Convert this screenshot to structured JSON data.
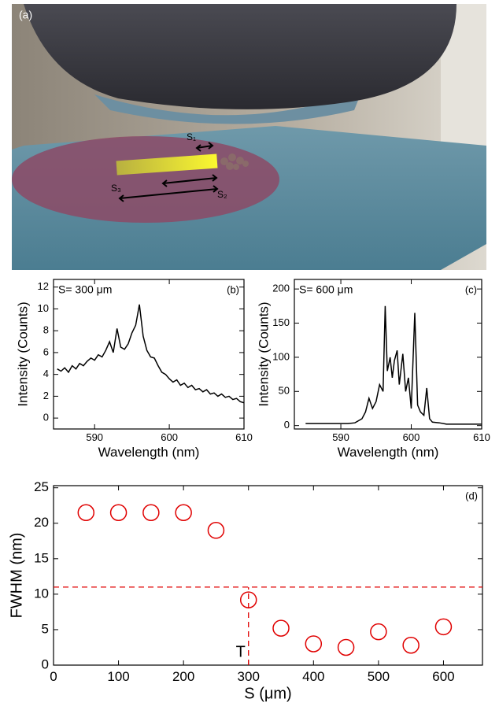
{
  "image_panel": {
    "label": "(a)",
    "marks": [
      "S₁",
      "S₂",
      "S₃"
    ]
  },
  "chart_data": [
    {
      "type": "line",
      "annotation": "S= 300 μm",
      "panel": "(b)",
      "xlabel": "Wavelength (nm)",
      "ylabel": "Intensity (Counts)",
      "color": "#000000",
      "x": [
        585,
        585.5,
        586,
        586.5,
        587,
        587.5,
        588,
        588.5,
        589,
        589.5,
        590,
        590.5,
        591,
        591.5,
        592,
        592.5,
        593,
        593.5,
        594,
        594.5,
        595,
        595.5,
        596,
        596.5,
        597,
        597.5,
        598,
        598.5,
        599,
        599.5,
        600,
        600.5,
        601,
        601.5,
        602,
        602.5,
        603,
        603.5,
        604,
        604.5,
        605,
        605.5,
        606,
        606.5,
        607,
        607.5,
        608,
        608.5,
        609,
        609.5,
        610
      ],
      "values": [
        4.5,
        4.3,
        4.6,
        4.2,
        4.8,
        4.5,
        5.0,
        4.8,
        5.2,
        5.5,
        5.3,
        5.8,
        5.6,
        6.2,
        7.0,
        6.0,
        8.2,
        6.5,
        6.3,
        6.8,
        7.8,
        8.5,
        10.4,
        7.5,
        6.2,
        5.6,
        5.5,
        4.8,
        4.2,
        4.0,
        3.6,
        3.3,
        3.5,
        3.0,
        3.2,
        2.8,
        3.0,
        2.6,
        2.7,
        2.4,
        2.6,
        2.2,
        2.3,
        2.0,
        2.2,
        1.9,
        2.0,
        1.7,
        1.8,
        1.5,
        1.4
      ],
      "xlim": [
        584.5,
        610
      ],
      "ylim": [
        -1,
        12.7
      ],
      "xticks": [
        590,
        600,
        610
      ],
      "yticks": [
        0,
        2,
        4,
        6,
        8,
        10,
        12
      ]
    },
    {
      "type": "line",
      "annotation": "S= 600 μm",
      "panel": "(c)",
      "xlabel": "Wavelength (nm)",
      "ylabel": "Intensity (Counts)",
      "color": "#000000",
      "x": [
        585,
        587,
        589,
        591,
        592,
        593,
        593.5,
        594,
        594.5,
        595,
        595.5,
        596,
        596.3,
        596.6,
        597,
        597.3,
        597.6,
        598,
        598.3,
        598.8,
        599.2,
        599.6,
        600,
        600.5,
        600.9,
        601.3,
        601.8,
        602.2,
        602.6,
        603,
        604,
        605,
        607,
        610
      ],
      "values": [
        3,
        3,
        3,
        3,
        4,
        10,
        20,
        40,
        25,
        35,
        60,
        50,
        175,
        80,
        100,
        70,
        95,
        110,
        60,
        105,
        50,
        70,
        25,
        165,
        30,
        20,
        15,
        55,
        10,
        5,
        4,
        2,
        2,
        2
      ],
      "xlim": [
        583.4,
        610
      ],
      "ylim": [
        -5,
        214
      ],
      "xticks": [
        590,
        600,
        610
      ],
      "yticks": [
        0,
        50,
        100,
        150,
        200
      ]
    },
    {
      "type": "scatter",
      "panel": "(d)",
      "xlabel": "S (μm)",
      "ylabel": "FWHM (nm)",
      "color": "#e00000",
      "x": [
        50,
        100,
        150,
        200,
        250,
        300,
        350,
        400,
        450,
        500,
        550,
        600
      ],
      "values": [
        21.5,
        21.5,
        21.5,
        21.5,
        19,
        9.2,
        5.2,
        3,
        2.5,
        4.7,
        2.8,
        5.4
      ],
      "threshold": {
        "y": 11,
        "x": 300,
        "label": "T"
      },
      "xlim": [
        0,
        660
      ],
      "ylim": [
        0,
        25.3
      ],
      "xticks": [
        0,
        100,
        200,
        300,
        400,
        500,
        600
      ],
      "yticks": [
        0,
        5,
        10,
        15,
        20,
        25
      ]
    }
  ]
}
